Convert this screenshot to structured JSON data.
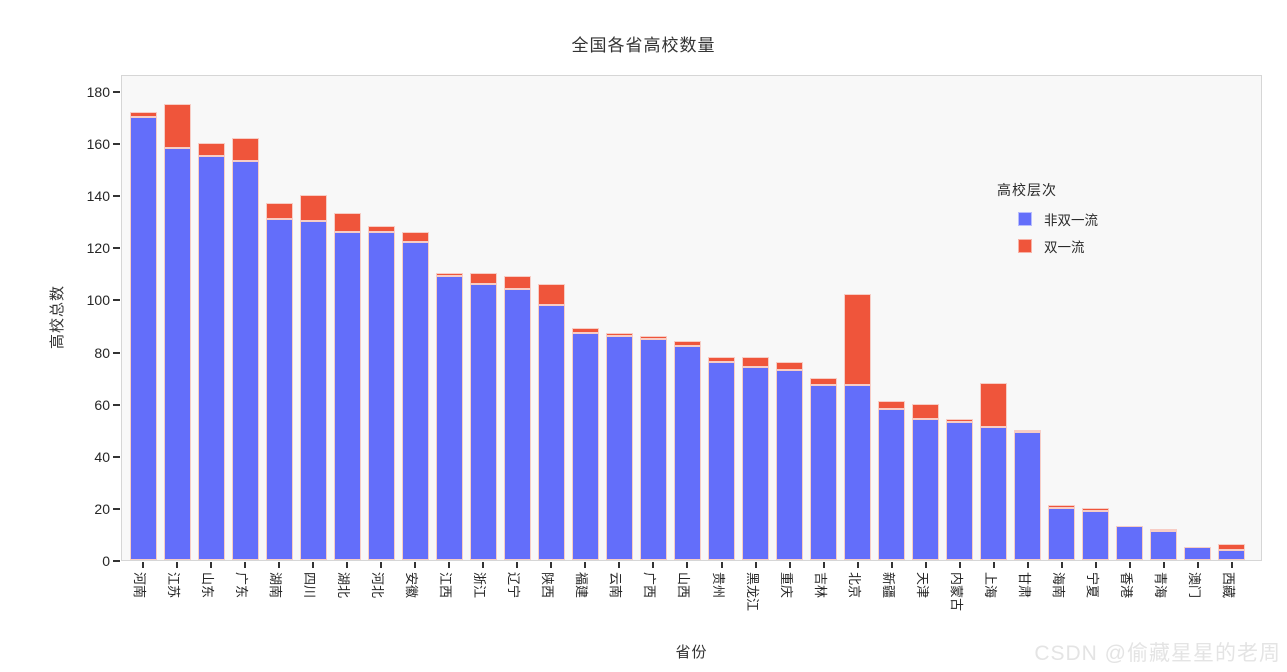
{
  "title": "全国各省高校数量",
  "watermark": "CSDN @偷藏星星的老周",
  "colors": {
    "non_first_class": "#636EFA",
    "first_class": "#EF553B",
    "bar_edge": "#f7cdc5",
    "panel_bg": "#f8f8f8",
    "panel_border": "#d6d6d6",
    "text": "#262626",
    "watermark": "#e4e4e4"
  },
  "chart_data": {
    "type": "bar",
    "stacked": true,
    "title": "全国各省高校数量",
    "xlabel": "省份",
    "ylabel": "高校总数",
    "ylim": [
      0,
      180
    ],
    "yticks": [
      0,
      20,
      40,
      60,
      80,
      100,
      120,
      140,
      160,
      180
    ],
    "grid": false,
    "legend_title": "高校层次",
    "legend_position": "right-inside",
    "x_tick_rotation": 90,
    "categories": [
      "河南",
      "江苏",
      "山东",
      "广东",
      "湖南",
      "四川",
      "湖北",
      "河北",
      "安徽",
      "江西",
      "浙江",
      "辽宁",
      "陕西",
      "福建",
      "云南",
      "广西",
      "山西",
      "贵州",
      "黑龙江",
      "重庆",
      "吉林",
      "北京",
      "新疆",
      "天津",
      "内蒙古",
      "上海",
      "甘肃",
      "海南",
      "宁夏",
      "香港",
      "青海",
      "澳门",
      "西藏"
    ],
    "series": [
      {
        "name": "非双一流",
        "color": "#636EFA",
        "values": [
          170,
          158,
          155,
          153,
          131,
          130,
          126,
          126,
          122,
          109,
          106,
          104,
          98,
          87,
          86,
          85,
          82,
          76,
          74,
          73,
          67,
          67,
          58,
          54,
          53,
          51,
          49,
          20,
          19,
          13,
          11,
          5,
          4
        ]
      },
      {
        "name": "双一流",
        "color": "#EF553B",
        "values": [
          2,
          17,
          5,
          9,
          6,
          10,
          7,
          2,
          4,
          1,
          4,
          5,
          8,
          2,
          1,
          1,
          2,
          2,
          4,
          3,
          3,
          35,
          3,
          6,
          1,
          17,
          1,
          1,
          1,
          0,
          1,
          0,
          2
        ]
      }
    ]
  }
}
